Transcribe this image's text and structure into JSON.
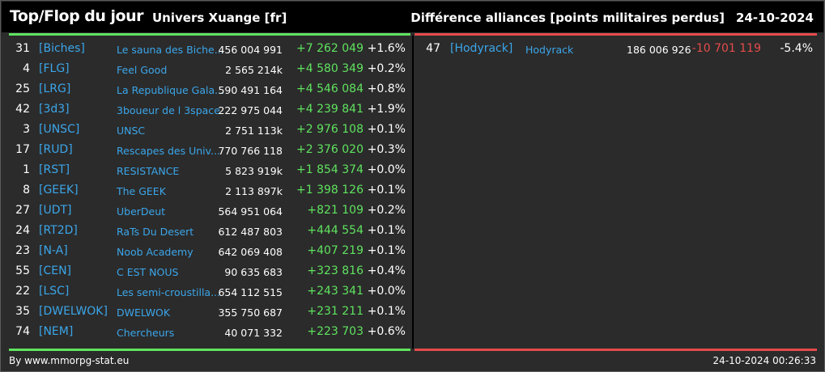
{
  "header": {
    "title": "Top/Flop du jour",
    "universe": "Univers Xuange [fr]",
    "subtitle": "Différence alliances [points militaires perdus]",
    "date": "24-10-2024"
  },
  "colors": {
    "gain": "#5fe35f",
    "loss": "#e64b4b",
    "link": "#3ba6ea",
    "background": "#2b2b2b"
  },
  "top": [
    {
      "rank": "31",
      "tag": "[Biches]",
      "name": "Le sauna des Biche...",
      "points": "456 004 991",
      "diff": "+7 262 049",
      "pct": "+1.6%"
    },
    {
      "rank": "4",
      "tag": "[FLG]",
      "name": "Feel Good",
      "points": "2 565 214k",
      "diff": "+4 580 349",
      "pct": "+0.2%"
    },
    {
      "rank": "25",
      "tag": "[LRG]",
      "name": "La Republique Gala...",
      "points": "590 491 164",
      "diff": "+4 546 084",
      "pct": "+0.8%"
    },
    {
      "rank": "42",
      "tag": "[3d3]",
      "name": "3boueur de l 3space",
      "points": "222 975 044",
      "diff": "+4 239 841",
      "pct": "+1.9%"
    },
    {
      "rank": "3",
      "tag": "[UNSC]",
      "name": "UNSC",
      "points": "2 751 113k",
      "diff": "+2 976 108",
      "pct": "+0.1%"
    },
    {
      "rank": "17",
      "tag": "[RUD]",
      "name": "Rescapes des Univ...",
      "points": "770 766 118",
      "diff": "+2 376 020",
      "pct": "+0.3%"
    },
    {
      "rank": "1",
      "tag": "[RST]",
      "name": "RESISTANCE",
      "points": "5 823 919k",
      "diff": "+1 854 374",
      "pct": "+0.0%"
    },
    {
      "rank": "8",
      "tag": "[GEEK]",
      "name": "The GEEK",
      "points": "2 113 897k",
      "diff": "+1 398 126",
      "pct": "+0.1%"
    },
    {
      "rank": "27",
      "tag": "[UDT]",
      "name": "UberDeut",
      "points": "564 951 064",
      "diff": "+821 109",
      "pct": "+0.2%"
    },
    {
      "rank": "24",
      "tag": "[RT2D]",
      "name": "RaTs Du Desert",
      "points": "612 487 803",
      "diff": "+444 554",
      "pct": "+0.1%"
    },
    {
      "rank": "23",
      "tag": "[N-A]",
      "name": "Noob Academy",
      "points": "642 069 408",
      "diff": "+407 219",
      "pct": "+0.1%"
    },
    {
      "rank": "55",
      "tag": "[CEN]",
      "name": "C EST NOUS",
      "points": "90 635 683",
      "diff": "+323 816",
      "pct": "+0.4%"
    },
    {
      "rank": "22",
      "tag": "[LSC]",
      "name": "Les semi-croustilla...",
      "points": "654 112 515",
      "diff": "+243 341",
      "pct": "+0.0%"
    },
    {
      "rank": "35",
      "tag": "[DWELWOK]",
      "name": "DWELWOK",
      "points": "355 750 687",
      "diff": "+231 211",
      "pct": "+0.1%"
    },
    {
      "rank": "74",
      "tag": "[NEM]",
      "name": "Chercheurs",
      "points": "40 071 332",
      "diff": "+223 703",
      "pct": "+0.6%"
    }
  ],
  "flop": [
    {
      "rank": "47",
      "tag": "[Hodyrack]",
      "name": "Hodyrack",
      "points": "186 006 926",
      "diff": "-10 701 119",
      "pct": "-5.4%"
    }
  ],
  "footer": {
    "source": "By www.mmorpg-stat.eu",
    "timestamp": "24-10-2024 00:26:33"
  }
}
